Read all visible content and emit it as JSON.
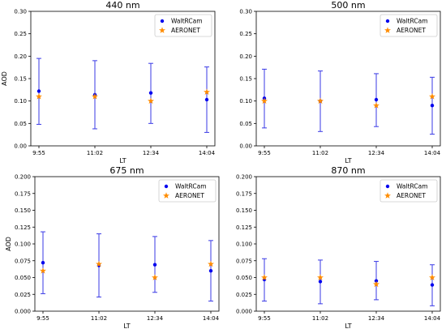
{
  "colors": {
    "walt": "#0000ee",
    "aeronet": "#ff8c00",
    "errorbar": "#3a3ae6",
    "axis": "#000000",
    "legend_border": "#cccccc"
  },
  "chart_data": [
    {
      "type": "scatter",
      "title": "440 nm",
      "xlabel": "LT",
      "ylabel": "AOD",
      "categories": [
        "9:55",
        "11:02",
        "12:34",
        "14:04"
      ],
      "ylim": [
        0,
        0.3
      ],
      "yticks": [
        "0.00",
        "0.05",
        "0.10",
        "0.15",
        "0.20",
        "0.25",
        "0.30"
      ],
      "series": [
        {
          "name": "WaltRCam",
          "marker": "circle",
          "values": [
            0.122,
            0.114,
            0.118,
            0.103
          ],
          "err_low": [
            0.048,
            0.038,
            0.05,
            0.03
          ],
          "err_high": [
            0.195,
            0.19,
            0.184,
            0.176
          ]
        },
        {
          "name": "AERONET",
          "marker": "star",
          "values": [
            0.11,
            0.11,
            0.1,
            0.12
          ]
        }
      ],
      "legend": "top-right",
      "grid": false
    },
    {
      "type": "scatter",
      "title": "500 nm",
      "xlabel": "LT",
      "ylabel": "",
      "categories": [
        "9:55",
        "11:02",
        "12:34",
        "14:04"
      ],
      "ylim": [
        0,
        0.3
      ],
      "yticks": [
        "0.00",
        "0.05",
        "0.10",
        "0.15",
        "0.20",
        "0.25",
        "0.30"
      ],
      "series": [
        {
          "name": "WaltRCam",
          "marker": "circle",
          "values": [
            0.106,
            0.1,
            0.103,
            0.09
          ],
          "err_low": [
            0.04,
            0.032,
            0.043,
            0.026
          ],
          "err_high": [
            0.171,
            0.167,
            0.161,
            0.153
          ]
        },
        {
          "name": "AERONET",
          "marker": "star",
          "values": [
            0.1,
            0.1,
            0.09,
            0.11
          ]
        }
      ],
      "legend": "top-right",
      "grid": false
    },
    {
      "type": "scatter",
      "title": "675 nm",
      "xlabel": "LT",
      "ylabel": "AOD",
      "categories": [
        "9:55",
        "11:02",
        "12:34",
        "14:04"
      ],
      "ylim": [
        0,
        0.2
      ],
      "yticks": [
        "0.000",
        "0.025",
        "0.050",
        "0.075",
        "0.100",
        "0.125",
        "0.150",
        "0.175",
        "0.200"
      ],
      "series": [
        {
          "name": "WaltRCam",
          "marker": "circle",
          "values": [
            0.072,
            0.068,
            0.069,
            0.06
          ],
          "err_low": [
            0.026,
            0.021,
            0.028,
            0.015
          ],
          "err_high": [
            0.118,
            0.115,
            0.111,
            0.105
          ]
        },
        {
          "name": "AERONET",
          "marker": "star",
          "values": [
            0.06,
            0.07,
            0.05,
            0.07
          ]
        }
      ],
      "legend": "top-right",
      "grid": false
    },
    {
      "type": "scatter",
      "title": "870 nm",
      "xlabel": "LT",
      "ylabel": "",
      "categories": [
        "9:55",
        "11:02",
        "12:34",
        "14:04"
      ],
      "ylim": [
        0,
        0.2
      ],
      "yticks": [
        "0.000",
        "0.025",
        "0.050",
        "0.075",
        "0.100",
        "0.125",
        "0.150",
        "0.175",
        "0.200"
      ],
      "series": [
        {
          "name": "WaltRCam",
          "marker": "circle",
          "values": [
            0.047,
            0.044,
            0.045,
            0.039
          ],
          "err_low": [
            0.015,
            0.011,
            0.017,
            0.008
          ],
          "err_high": [
            0.078,
            0.076,
            0.074,
            0.069
          ]
        },
        {
          "name": "AERONET",
          "marker": "star",
          "values": [
            0.05,
            0.05,
            0.04,
            0.05
          ]
        }
      ],
      "legend": "top-right",
      "grid": false
    }
  ]
}
